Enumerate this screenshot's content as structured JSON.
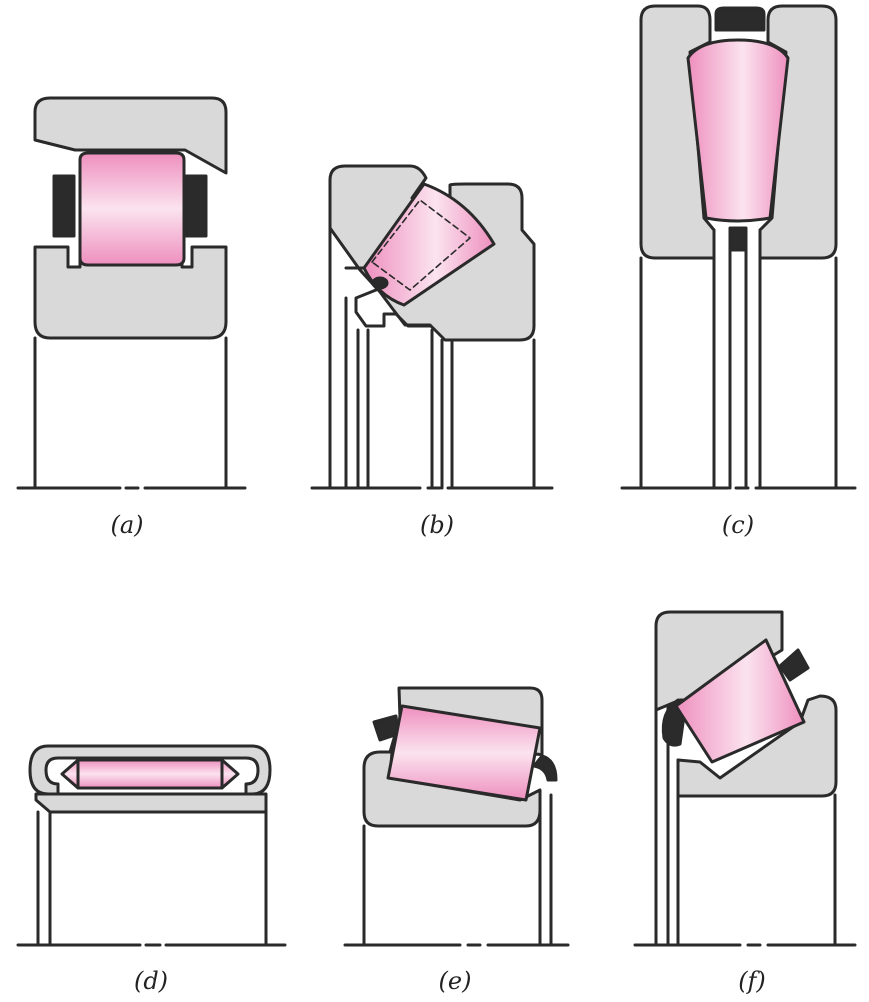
{
  "figure": {
    "colors": {
      "outline": "#2a2a2a",
      "housing_fill": "#d9d9d9",
      "roller_pink": "#ee8fbe",
      "roller_highlight": "#fbe3ef",
      "seal_black": "#2b2b2b",
      "background": "#ffffff"
    },
    "panels": [
      {
        "id": "a",
        "caption": "(a)"
      },
      {
        "id": "b",
        "caption": "(b)"
      },
      {
        "id": "c",
        "caption": "(c)"
      },
      {
        "id": "d",
        "caption": "(d)"
      },
      {
        "id": "e",
        "caption": "(e)"
      },
      {
        "id": "f",
        "caption": "(f)"
      }
    ]
  }
}
